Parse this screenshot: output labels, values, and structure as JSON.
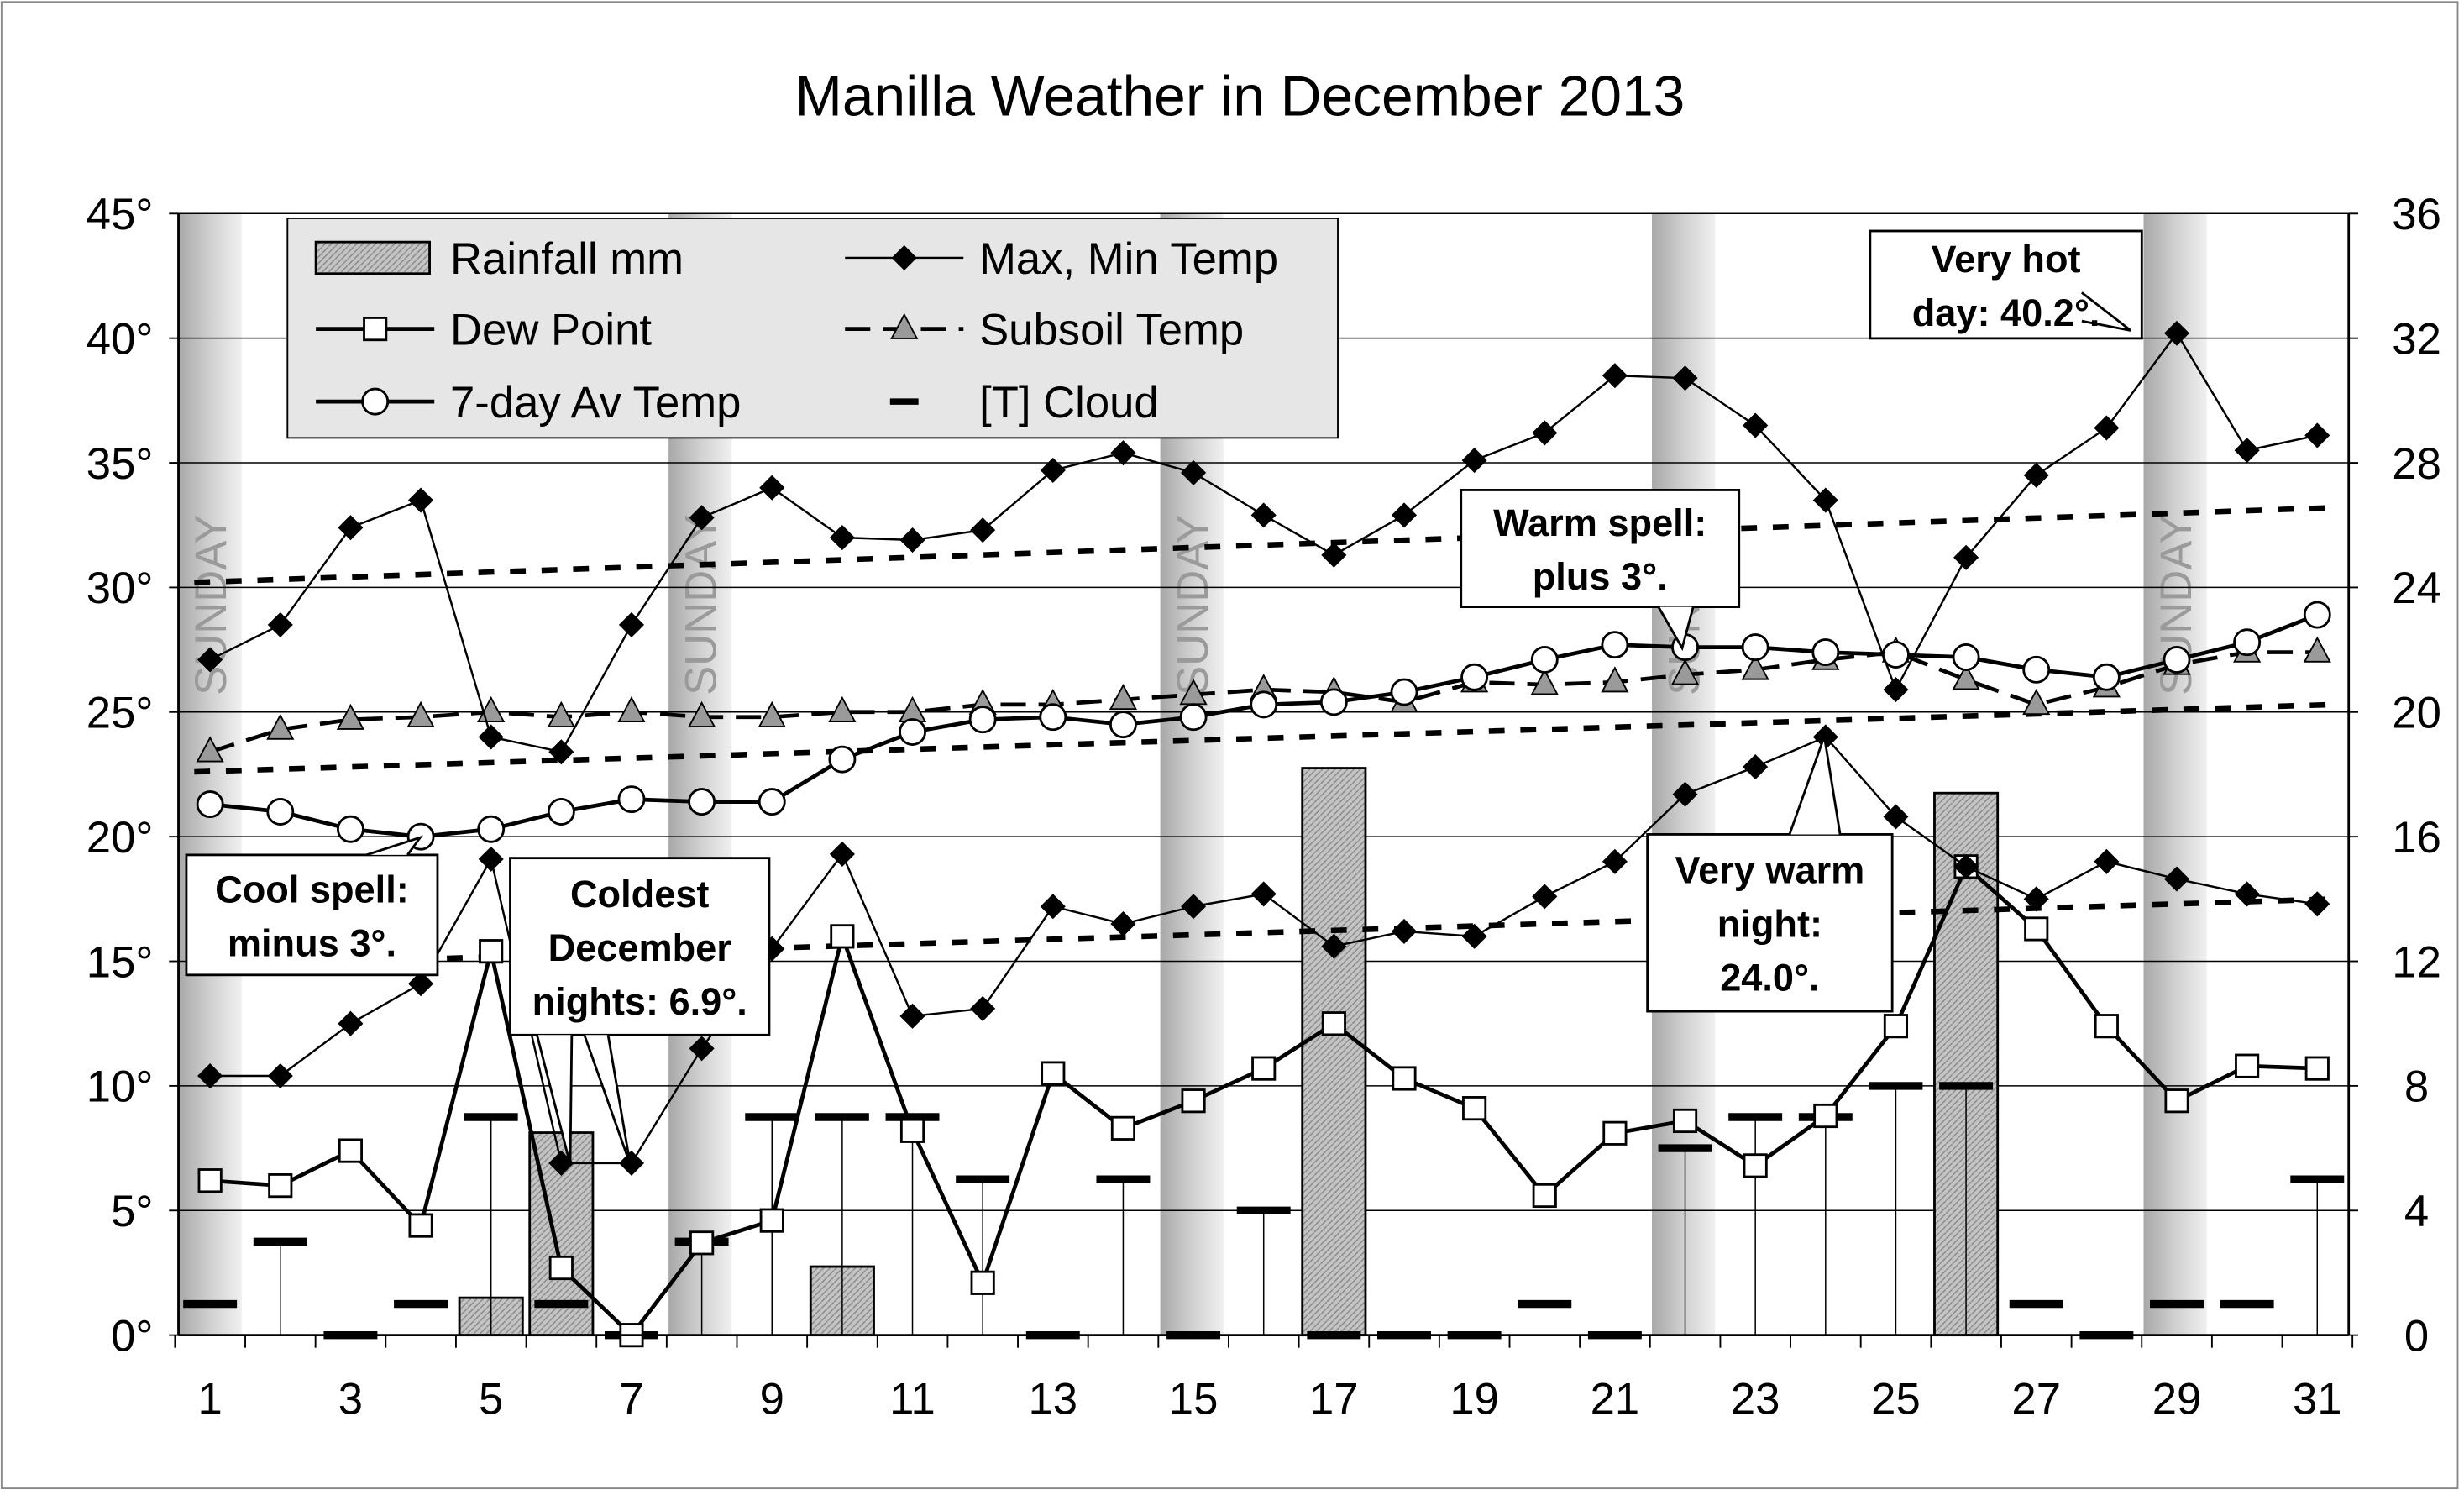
{
  "chart_data": {
    "type": "line",
    "title": "Manilla Weather in December 2013",
    "xlabel": "",
    "ylabel": "",
    "x": [
      1,
      2,
      3,
      4,
      5,
      6,
      7,
      8,
      9,
      10,
      11,
      12,
      13,
      14,
      15,
      16,
      17,
      18,
      19,
      20,
      21,
      22,
      23,
      24,
      25,
      26,
      27,
      28,
      29,
      30,
      31
    ],
    "x_tick_labels": [
      "1",
      "3",
      "5",
      "7",
      "9",
      "11",
      "13",
      "15",
      "17",
      "19",
      "21",
      "23",
      "25",
      "27",
      "29",
      "31"
    ],
    "xlim": [
      0.5,
      31.5
    ],
    "ylim_left": [
      0,
      45
    ],
    "ylim_right": [
      0,
      36
    ],
    "left_tick_labels": [
      "0°",
      "5°",
      "10°",
      "15°",
      "20°",
      "25°",
      "30°",
      "35°",
      "40°",
      "45°"
    ],
    "right_tick_labels": [
      "0",
      "4",
      "8",
      "12",
      "16",
      "20",
      "24",
      "28",
      "32",
      "36"
    ],
    "grid": true,
    "legend_placement": "top-left",
    "sunday_label": "SUNDAY",
    "sundays": [
      1,
      8,
      15,
      22,
      29
    ],
    "series": [
      {
        "name": "Rainfall mm",
        "type": "bar",
        "axis": "right",
        "values": [
          0,
          0,
          0,
          0,
          1.2,
          6.5,
          0,
          0,
          0,
          2.2,
          0,
          0,
          0,
          0,
          0,
          0,
          18.2,
          0,
          0,
          0,
          0,
          0,
          0,
          0,
          0,
          17.4,
          0,
          0,
          0,
          0,
          0
        ]
      },
      {
        "name": "Max, Min Temp",
        "type": "line",
        "axis": "left",
        "marker": "diamond",
        "sub": "max",
        "values": [
          27.1,
          28.5,
          32.4,
          33.5,
          24.0,
          23.4,
          28.5,
          32.8,
          34.0,
          32.0,
          31.9,
          32.3,
          34.7,
          35.4,
          34.6,
          32.9,
          31.3,
          32.9,
          35.1,
          36.2,
          38.5,
          38.4,
          36.5,
          33.5,
          25.9,
          31.2,
          34.5,
          36.4,
          40.2,
          35.5,
          36.1
        ]
      },
      {
        "name": "Max, Min Temp",
        "type": "line",
        "axis": "left",
        "marker": "diamond",
        "sub": "min",
        "values": [
          10.4,
          10.4,
          12.5,
          14.1,
          19.1,
          6.9,
          6.9,
          11.5,
          15.5,
          19.3,
          12.8,
          13.1,
          17.2,
          16.5,
          17.2,
          17.7,
          15.6,
          16.2,
          16.0,
          17.6,
          19.0,
          21.7,
          22.8,
          24.0,
          20.8,
          18.8,
          17.5,
          19.0,
          18.3,
          17.7,
          17.3
        ]
      },
      {
        "name": "Dew Point",
        "type": "line",
        "axis": "left",
        "marker": "square",
        "values": [
          6.2,
          6.0,
          7.4,
          4.4,
          15.4,
          2.7,
          0.0,
          3.7,
          4.6,
          16.0,
          8.2,
          2.1,
          10.5,
          8.3,
          9.4,
          10.7,
          12.5,
          10.3,
          9.1,
          5.6,
          8.1,
          8.6,
          6.8,
          8.8,
          12.4,
          18.8,
          16.3,
          12.4,
          9.4,
          10.8,
          10.7
        ]
      },
      {
        "name": "Subsoil Temp",
        "type": "line",
        "axis": "left",
        "marker": "triangle",
        "values": [
          23.4,
          24.3,
          24.7,
          24.8,
          25.0,
          24.8,
          25.0,
          24.8,
          24.8,
          25.0,
          25.0,
          25.3,
          25.3,
          25.5,
          25.7,
          25.9,
          25.8,
          25.4,
          26.2,
          26.1,
          26.2,
          26.5,
          26.7,
          27.1,
          27.4,
          26.3,
          25.3,
          26.0,
          26.9,
          27.4,
          27.4
        ]
      },
      {
        "name": "7-day Av Temp",
        "type": "line",
        "axis": "left",
        "marker": "circle",
        "values": [
          21.3,
          21.0,
          20.3,
          20.0,
          20.3,
          21.0,
          21.5,
          21.4,
          21.4,
          23.1,
          24.2,
          24.7,
          24.8,
          24.5,
          24.8,
          25.3,
          25.4,
          25.8,
          26.4,
          27.1,
          27.7,
          27.6,
          27.6,
          27.4,
          27.3,
          27.2,
          26.7,
          26.4,
          27.1,
          27.8,
          28.9
        ]
      },
      {
        "name": "[T] Cloud",
        "type": "marker",
        "axis": "right",
        "marker": "dash",
        "values": [
          1,
          3,
          0,
          1,
          7,
          1,
          0,
          3,
          7,
          7,
          7,
          5,
          0,
          5,
          0,
          4,
          0,
          0,
          0,
          1,
          0,
          6,
          7,
          7,
          8,
          8,
          1,
          0,
          1,
          1,
          5
        ]
      }
    ],
    "reference_lines": [
      {
        "kind": "mean max",
        "start": 30.2,
        "end": 33.2
      },
      {
        "kind": "mean",
        "start": 22.6,
        "end": 25.3
      },
      {
        "kind": "mean min",
        "start": 14.8,
        "end": 17.5
      }
    ],
    "annotations": [
      {
        "id": "cool",
        "lines": [
          "Cool spell:",
          "minus 3°."
        ]
      },
      {
        "id": "coldest",
        "lines": [
          "Coldest",
          "December",
          "nights: 6.9°."
        ]
      },
      {
        "id": "warm",
        "lines": [
          "Warm spell:",
          "plus 3°."
        ]
      },
      {
        "id": "warmnight",
        "lines": [
          "Very warm",
          "night:",
          "24.0°."
        ]
      },
      {
        "id": "hot",
        "lines": [
          "Very hot",
          "day: 40.2°."
        ]
      }
    ]
  },
  "colors": {
    "line": "#000000",
    "bar": "#b8b8b8",
    "sunday": "#c0c0c0",
    "grid": "#000000",
    "marker_fill": "#ffffff",
    "triangle": "#9a9a9a"
  }
}
